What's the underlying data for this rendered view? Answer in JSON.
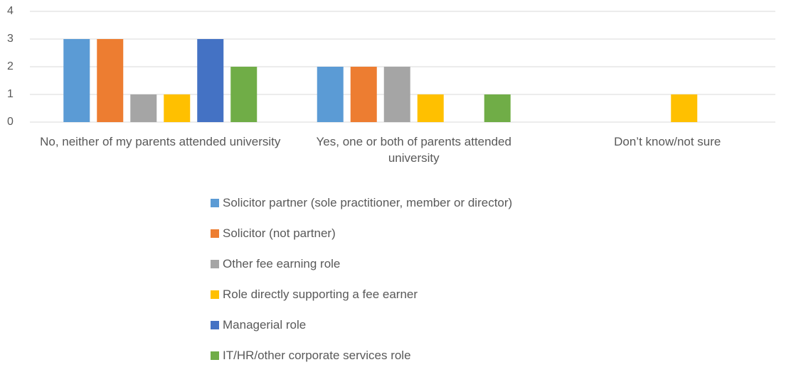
{
  "chart_data": {
    "type": "bar",
    "categories": [
      "No, neither of my parents attended university",
      "Yes, one or both of parents attended university",
      "Don’t know/not sure"
    ],
    "series": [
      {
        "name": "Solicitor partner (sole practitioner, member or director)",
        "color": "#5b9bd5",
        "values": [
          3,
          2,
          0
        ]
      },
      {
        "name": "Solicitor (not partner)",
        "color": "#ed7d31",
        "values": [
          3,
          2,
          0
        ]
      },
      {
        "name": "Other fee earning role",
        "color": "#a5a5a5",
        "values": [
          1,
          2,
          0
        ]
      },
      {
        "name": "Role directly supporting a fee earner",
        "color": "#ffc000",
        "values": [
          1,
          1,
          1
        ]
      },
      {
        "name": "Managerial role",
        "color": "#4472c4",
        "values": [
          3,
          0,
          0
        ]
      },
      {
        "name": "IT/HR/other corporate services role",
        "color": "#70ad47",
        "values": [
          2,
          1,
          0
        ]
      }
    ],
    "ylim": [
      0,
      4
    ],
    "yticks": [
      0,
      1,
      2,
      3,
      4
    ],
    "grid": true,
    "legend": "bottom"
  }
}
